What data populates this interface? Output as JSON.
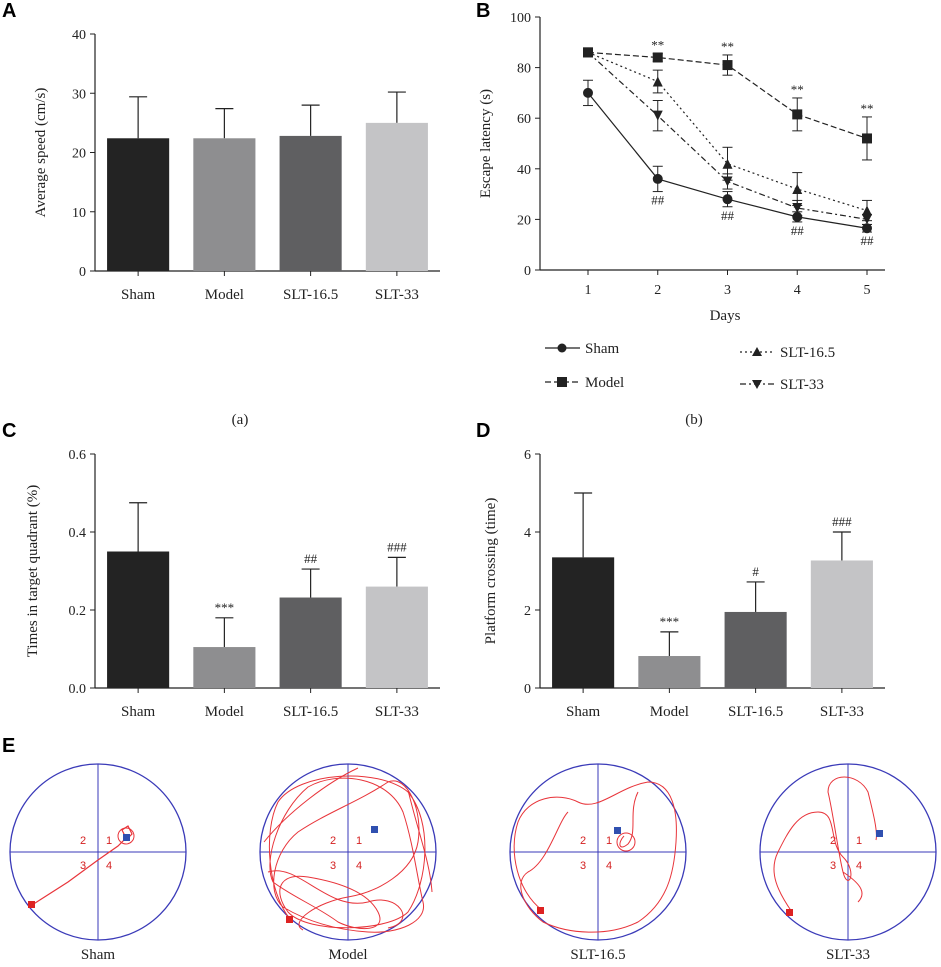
{
  "chart_data": [
    {
      "panel": "A",
      "type": "bar",
      "categories": [
        "Sham",
        "Model",
        "SLT-16.5",
        "SLT-33"
      ],
      "values": [
        22.4,
        22.4,
        22.8,
        25.0
      ],
      "errors": [
        7.0,
        5.0,
        5.2,
        5.2
      ],
      "colors": [
        "#232323",
        "#8e8e90",
        "#5f5f61",
        "#c4c4c6"
      ],
      "significance": [
        "",
        "",
        "",
        ""
      ],
      "ylabel": "Average speed (cm/s)",
      "ylim": [
        0,
        40
      ],
      "yticks": [
        0,
        10,
        20,
        30,
        40
      ],
      "caption": "(a)"
    },
    {
      "panel": "B",
      "type": "line",
      "x": [
        1,
        2,
        3,
        4,
        5
      ],
      "xticks": [
        1,
        2,
        3,
        4,
        5
      ],
      "xlabel": "Days",
      "ylabel": "Escape latency (s)",
      "ylim": [
        0,
        100
      ],
      "yticks": [
        0,
        20,
        40,
        60,
        80,
        100
      ],
      "series": [
        {
          "name": "Sham",
          "marker": "circle",
          "dash": "solid",
          "values": [
            70,
            36,
            28,
            21,
            16.5
          ],
          "errors": [
            5,
            5,
            3,
            2,
            1.5
          ],
          "sig": [
            "",
            "##",
            "##",
            "##",
            "##"
          ]
        },
        {
          "name": "Model",
          "marker": "square",
          "dash": "dashed",
          "values": [
            86,
            84,
            81,
            61.5,
            52
          ],
          "errors": [
            1.5,
            1.5,
            4,
            6.5,
            8.5
          ],
          "sig": [
            "",
            "**",
            "**",
            "**",
            "**"
          ]
        },
        {
          "name": "SLT-16.5",
          "marker": "triangle-up",
          "dash": "dotted",
          "values": [
            86,
            74.5,
            42,
            32,
            23.5
          ],
          "errors": [
            1.5,
            4.5,
            6.5,
            6.5,
            4
          ],
          "sig": [
            "",
            "",
            "",
            "",
            ""
          ]
        },
        {
          "name": "SLT-33",
          "marker": "triangle-down",
          "dash": "dashdot",
          "values": [
            86,
            61,
            35,
            24.5,
            20
          ],
          "errors": [
            1.5,
            6,
            3,
            3,
            2
          ],
          "sig": [
            "",
            "",
            "",
            "",
            ""
          ]
        }
      ],
      "caption": "(b)"
    },
    {
      "panel": "C",
      "type": "bar",
      "categories": [
        "Sham",
        "Model",
        "SLT-16.5",
        "SLT-33"
      ],
      "values": [
        0.35,
        0.105,
        0.232,
        0.26
      ],
      "errors": [
        0.125,
        0.075,
        0.073,
        0.075
      ],
      "colors": [
        "#232323",
        "#8e8e90",
        "#5f5f61",
        "#c4c4c6"
      ],
      "significance": [
        "",
        "***",
        "##",
        "###"
      ],
      "ylabel": "Times in target quadrant (%)",
      "ylim": [
        0,
        0.6
      ],
      "yticks": [
        "0.0",
        "0.2",
        "0.4",
        "0.6"
      ]
    },
    {
      "panel": "D",
      "type": "bar",
      "categories": [
        "Sham",
        "Model",
        "SLT-16.5",
        "SLT-33"
      ],
      "values": [
        3.35,
        0.82,
        1.95,
        3.27
      ],
      "errors": [
        1.65,
        0.62,
        0.77,
        0.73
      ],
      "colors": [
        "#232323",
        "#8e8e90",
        "#5f5f61",
        "#c4c4c6"
      ],
      "significance": [
        "",
        "***",
        "#",
        "###"
      ],
      "ylabel": "Platform crossing (time)",
      "ylim": [
        0,
        6
      ],
      "yticks": [
        0,
        2,
        4,
        6
      ]
    }
  ],
  "panel_letters": {
    "a": "A",
    "b": "B",
    "c": "C",
    "d": "D",
    "e": "E"
  },
  "panel_e": {
    "quadrant_labels": [
      "2",
      "1",
      "3",
      "4"
    ],
    "mazes": [
      {
        "label": "Sham"
      },
      {
        "label": "Model"
      },
      {
        "label": "SLT-16.5"
      },
      {
        "label": "SLT-33"
      }
    ]
  },
  "colors": {
    "path": "#e8343a",
    "start": "#dd2222",
    "platform": "#3050b0",
    "circle": "#3a3ab8"
  }
}
